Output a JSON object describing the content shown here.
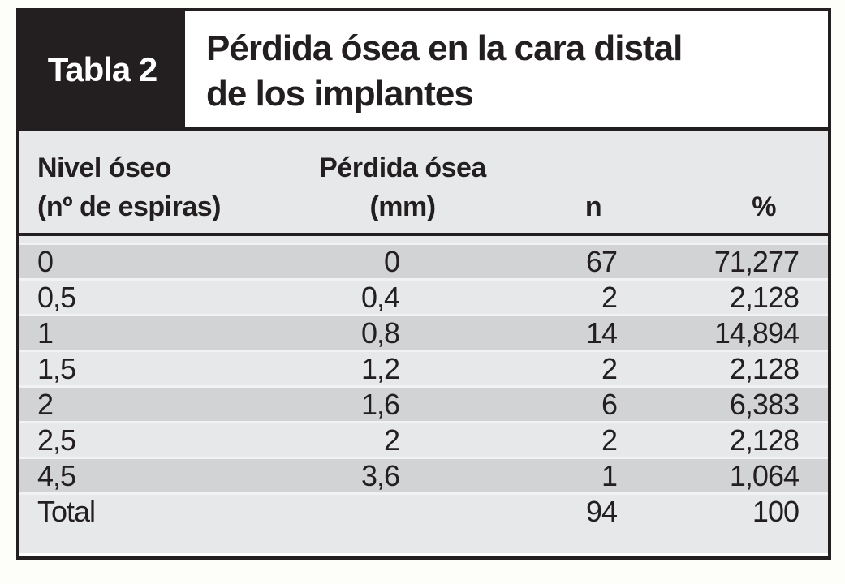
{
  "figure": {
    "label": "Tabla 2",
    "title_line1": "Pérdida ósea en la cara distal",
    "title_line2": "de los implantes"
  },
  "table": {
    "headers": {
      "col1_line1": "Nivel óseo",
      "col1_line2": "(nº de espiras)",
      "col2_line1": "Pérdida ósea",
      "col2_line2": "(mm)",
      "col3": "n",
      "col4": "%"
    },
    "rows": [
      {
        "nivel": "0",
        "perdida": "0",
        "n": "67",
        "pct": "71,277"
      },
      {
        "nivel": "0,5",
        "perdida": "0,4",
        "n": "2",
        "pct": "2,128"
      },
      {
        "nivel": "1",
        "perdida": "0,8",
        "n": "14",
        "pct": "14,894"
      },
      {
        "nivel": "1,5",
        "perdida": "1,2",
        "n": "2",
        "pct": "2,128"
      },
      {
        "nivel": "2",
        "perdida": "1,6",
        "n": "6",
        "pct": "6,383"
      },
      {
        "nivel": "2,5",
        "perdida": "2",
        "n": "2",
        "pct": "2,128"
      },
      {
        "nivel": "4,5",
        "perdida": "3,6",
        "n": "1",
        "pct": "1,064"
      },
      {
        "nivel": "Total",
        "perdida": "",
        "n": "94",
        "pct": "100"
      }
    ]
  },
  "colors": {
    "ink_black": "#231f20",
    "row_dark": "#d2d3d5",
    "row_light": "#e7e8ea",
    "row_separator": "#f2f2f4",
    "header_bg": "#ffffff",
    "page_bg": "#fdfdfa"
  }
}
